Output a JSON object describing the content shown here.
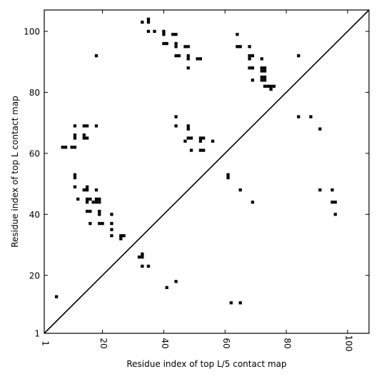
{
  "chart_data": {
    "type": "scatter",
    "xlabel": "Residue index of top L/5 contact map",
    "ylabel": "Residue index of top L contact map",
    "xlim": [
      1,
      107
    ],
    "ylim": [
      1,
      107
    ],
    "x_ticks": [
      1,
      20,
      40,
      60,
      80,
      100
    ],
    "y_ticks": [
      1,
      20,
      40,
      60,
      80,
      100
    ],
    "x_tick_labels": [
      "1",
      "20",
      "40",
      "60",
      "80",
      "100"
    ],
    "y_tick_labels": [
      "1",
      "20",
      "40",
      "60",
      "80",
      "100"
    ],
    "diagonal": true,
    "marker": "square",
    "colors": {
      "marker": "#000000",
      "diagonal": "#000000",
      "frame": "#000000"
    },
    "upper_triangle_points": [
      [
        33,
        103
      ],
      [
        35,
        103
      ],
      [
        35,
        104
      ],
      [
        35,
        100
      ],
      [
        37,
        100
      ],
      [
        40,
        100
      ],
      [
        40,
        99
      ],
      [
        43,
        99
      ],
      [
        44,
        99
      ],
      [
        40,
        96
      ],
      [
        41,
        96
      ],
      [
        44,
        96
      ],
      [
        44,
        95
      ],
      [
        47,
        95
      ],
      [
        48,
        95
      ],
      [
        44,
        92
      ],
      [
        45,
        92
      ],
      [
        48,
        92
      ],
      [
        48,
        91
      ],
      [
        51,
        91
      ],
      [
        52,
        91
      ],
      [
        48,
        88
      ],
      [
        18,
        92
      ],
      [
        64,
        99
      ],
      [
        64,
        95
      ],
      [
        65,
        95
      ],
      [
        68,
        95
      ],
      [
        68,
        92
      ],
      [
        69,
        92
      ],
      [
        68,
        91
      ],
      [
        72,
        91
      ],
      [
        68,
        88
      ],
      [
        69,
        88
      ],
      [
        72,
        88
      ],
      [
        73,
        88
      ],
      [
        72,
        87
      ],
      [
        73,
        87
      ],
      [
        72,
        85
      ],
      [
        73,
        85
      ],
      [
        72,
        84
      ],
      [
        73,
        84
      ],
      [
        69,
        84
      ],
      [
        73,
        82
      ],
      [
        74,
        82
      ],
      [
        75,
        82
      ],
      [
        76,
        82
      ],
      [
        75,
        81
      ],
      [
        11,
        69
      ],
      [
        14,
        69
      ],
      [
        15,
        69
      ],
      [
        18,
        69
      ],
      [
        11,
        66
      ],
      [
        11,
        65
      ],
      [
        14,
        66
      ],
      [
        14,
        65
      ],
      [
        15,
        65
      ],
      [
        7,
        62
      ],
      [
        8,
        62
      ],
      [
        10,
        62
      ],
      [
        11,
        62
      ],
      [
        11,
        53
      ],
      [
        11,
        52
      ],
      [
        11,
        49
      ],
      [
        12,
        45
      ],
      [
        14,
        48
      ],
      [
        15,
        48
      ],
      [
        15,
        49
      ],
      [
        18,
        48
      ],
      [
        15,
        45
      ],
      [
        16,
        45
      ],
      [
        18,
        45
      ],
      [
        19,
        45
      ],
      [
        15,
        44
      ],
      [
        17,
        44
      ],
      [
        18,
        44
      ],
      [
        19,
        44
      ],
      [
        15,
        41
      ],
      [
        16,
        41
      ],
      [
        19,
        41
      ],
      [
        19,
        40
      ],
      [
        16,
        37
      ],
      [
        19,
        37
      ],
      [
        20,
        37
      ],
      [
        23,
        40
      ],
      [
        23,
        37
      ],
      [
        23,
        35
      ],
      [
        23,
        33
      ],
      [
        26,
        33
      ],
      [
        27,
        33
      ],
      [
        26,
        32
      ],
      [
        32,
        26
      ],
      [
        33,
        26
      ],
      [
        33,
        27
      ],
      [
        33,
        23
      ],
      [
        35,
        23
      ],
      [
        44,
        72
      ],
      [
        44,
        69
      ],
      [
        48,
        69
      ],
      [
        48,
        68
      ],
      [
        48,
        65
      ],
      [
        49,
        65
      ],
      [
        47,
        64
      ],
      [
        52,
        65
      ],
      [
        53,
        65
      ],
      [
        52,
        64
      ],
      [
        56,
        64
      ],
      [
        49,
        61
      ],
      [
        52,
        61
      ],
      [
        53,
        61
      ],
      [
        61,
        53
      ],
      [
        61,
        52
      ],
      [
        65,
        48
      ],
      [
        69,
        44
      ]
    ],
    "lower_triangle_points": [
      [
        84,
        92
      ],
      [
        84,
        72
      ],
      [
        88,
        72
      ],
      [
        91,
        68
      ],
      [
        91,
        48
      ],
      [
        95,
        48
      ],
      [
        95,
        44
      ],
      [
        96,
        44
      ],
      [
        96,
        40
      ],
      [
        41,
        16
      ],
      [
        44,
        18
      ],
      [
        62,
        11
      ],
      [
        65,
        11
      ],
      [
        5,
        13
      ]
    ]
  }
}
